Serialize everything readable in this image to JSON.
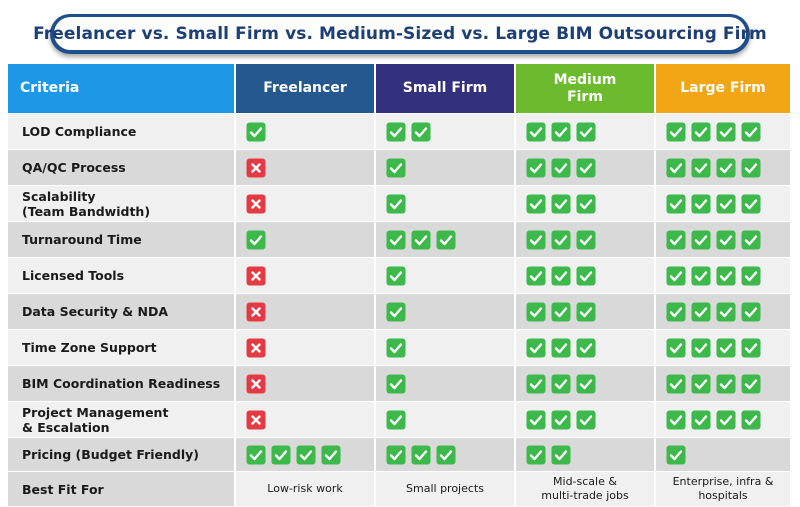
{
  "title": "Freelancer vs. Small Firm vs. Medium-Sized vs. Large BIM Outsourcing Firm",
  "columns": [
    {
      "label": "Criteria"
    },
    {
      "label": "Freelancer"
    },
    {
      "label": "Small Firm"
    },
    {
      "label": "Medium\nFirm"
    },
    {
      "label": "Large Firm"
    }
  ],
  "colors": {
    "criteria_header": "#1d98e6",
    "freelancer_header": "#24588f",
    "small_header": "#33307e",
    "medium_header": "#6cba2e",
    "large_header": "#f2a515",
    "check_green": "#3cb94a",
    "cross_red": "#e53a45"
  },
  "rows": [
    {
      "criteria": "LOD Compliance",
      "freelancer": [
        "check"
      ],
      "small": [
        "check",
        "check"
      ],
      "medium": [
        "check",
        "check",
        "check"
      ],
      "large": [
        "check",
        "check",
        "check",
        "check"
      ]
    },
    {
      "criteria": "QA/QC Process",
      "freelancer": [
        "cross"
      ],
      "small": [
        "check"
      ],
      "medium": [
        "check",
        "check",
        "check"
      ],
      "large": [
        "check",
        "check",
        "check",
        "check"
      ]
    },
    {
      "criteria": "Scalability\n(Team Bandwidth)",
      "freelancer": [
        "cross"
      ],
      "small": [
        "check"
      ],
      "medium": [
        "check",
        "check",
        "check"
      ],
      "large": [
        "check",
        "check",
        "check",
        "check"
      ]
    },
    {
      "criteria": "Turnaround Time",
      "freelancer": [
        "check"
      ],
      "small": [
        "check",
        "check",
        "check"
      ],
      "medium": [
        "check",
        "check",
        "check"
      ],
      "large": [
        "check",
        "check",
        "check",
        "check"
      ]
    },
    {
      "criteria": "Licensed Tools",
      "freelancer": [
        "cross"
      ],
      "small": [
        "check"
      ],
      "medium": [
        "check",
        "check",
        "check"
      ],
      "large": [
        "check",
        "check",
        "check",
        "check"
      ]
    },
    {
      "criteria": "Data Security & NDA",
      "freelancer": [
        "cross"
      ],
      "small": [
        "check"
      ],
      "medium": [
        "check",
        "check",
        "check"
      ],
      "large": [
        "check",
        "check",
        "check",
        "check"
      ]
    },
    {
      "criteria": "Time Zone Support",
      "freelancer": [
        "cross"
      ],
      "small": [
        "check"
      ],
      "medium": [
        "check",
        "check",
        "check"
      ],
      "large": [
        "check",
        "check",
        "check",
        "check"
      ]
    },
    {
      "criteria": "BIM Coordination Readiness",
      "freelancer": [
        "cross"
      ],
      "small": [
        "check"
      ],
      "medium": [
        "check",
        "check",
        "check"
      ],
      "large": [
        "check",
        "check",
        "check",
        "check"
      ]
    },
    {
      "criteria": "Project Management\n& Escalation",
      "freelancer": [
        "cross"
      ],
      "small": [
        "check"
      ],
      "medium": [
        "check",
        "check",
        "check"
      ],
      "large": [
        "check",
        "check",
        "check",
        "check"
      ]
    },
    {
      "criteria": "Pricing (Budget Friendly)",
      "freelancer": [
        "check",
        "check",
        "check",
        "check"
      ],
      "small": [
        "check",
        "check",
        "check"
      ],
      "medium": [
        "check",
        "check"
      ],
      "large": [
        "check"
      ]
    }
  ],
  "best_fit": {
    "criteria": "Best Fit For",
    "freelancer": "Low-risk work",
    "small": "Small projects",
    "medium": "Mid-scale &\nmulti-trade jobs",
    "large": "Enterprise, infra &\nhospitals"
  }
}
